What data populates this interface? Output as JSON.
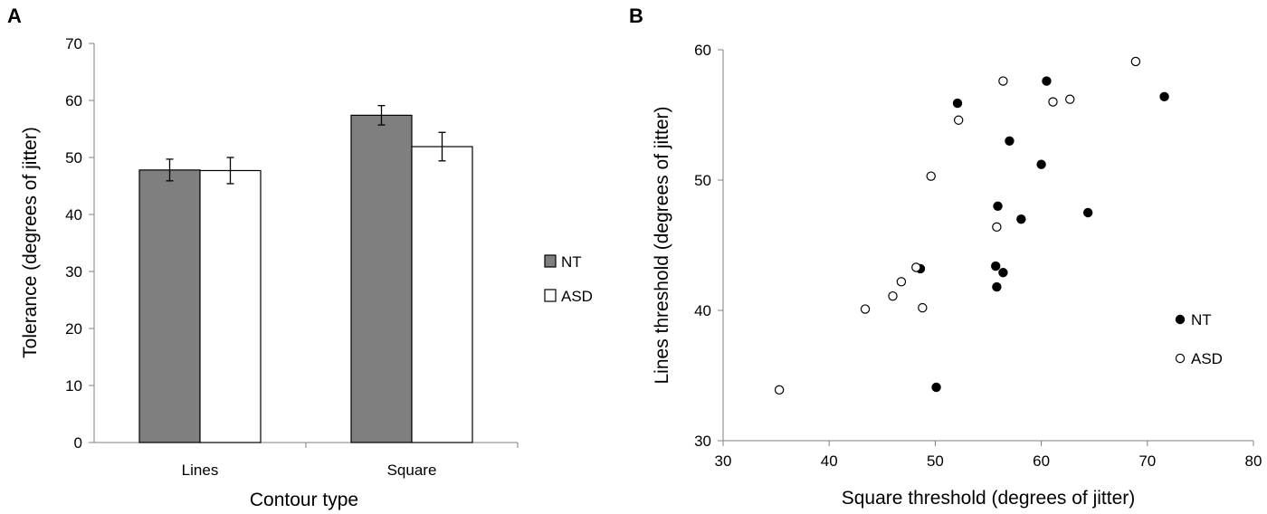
{
  "chart_data": [
    {
      "panel": "A",
      "type": "bar",
      "title": "",
      "xlabel": "Contour type",
      "ylabel": "Tolerance (degrees of jitter)",
      "ylim": [
        0,
        70
      ],
      "yticks": [
        0,
        10,
        20,
        30,
        40,
        50,
        60,
        70
      ],
      "grid": false,
      "legend_position": "right",
      "categories": [
        "Lines",
        "Square"
      ],
      "series": [
        {
          "name": "NT",
          "color": "#7f7f7f",
          "values": [
            47.8,
            57.4
          ],
          "errors": [
            1.9,
            1.7
          ]
        },
        {
          "name": "ASD",
          "color": "#ffffff",
          "values": [
            47.7,
            51.9
          ],
          "errors": [
            2.3,
            2.5
          ]
        }
      ]
    },
    {
      "panel": "B",
      "type": "scatter",
      "title": "",
      "xlabel": "Square threshold (degrees of jitter)",
      "ylabel": "Lines threshold (degrees of jitter)",
      "xlim": [
        30,
        80
      ],
      "ylim": [
        30,
        60
      ],
      "xticks": [
        30,
        40,
        50,
        60,
        70,
        80
      ],
      "yticks": [
        30,
        40,
        50,
        60
      ],
      "grid": false,
      "legend_position": "bottom-right",
      "series": [
        {
          "name": "NT",
          "marker": "filled",
          "points": [
            [
              60.5,
              57.6
            ],
            [
              71.6,
              56.4
            ],
            [
              52.1,
              55.9
            ],
            [
              57.0,
              53.0
            ],
            [
              60.0,
              51.2
            ],
            [
              55.9,
              48.0
            ],
            [
              58.1,
              47.0
            ],
            [
              64.4,
              47.5
            ],
            [
              48.6,
              43.2
            ],
            [
              55.7,
              43.4
            ],
            [
              56.4,
              42.9
            ],
            [
              55.8,
              41.8
            ],
            [
              50.1,
              34.1
            ]
          ]
        },
        {
          "name": "ASD",
          "marker": "open",
          "points": [
            [
              68.9,
              59.1
            ],
            [
              56.4,
              57.6
            ],
            [
              61.1,
              56.0
            ],
            [
              62.7,
              56.2
            ],
            [
              52.2,
              54.6
            ],
            [
              49.6,
              50.3
            ],
            [
              55.8,
              46.4
            ],
            [
              48.2,
              43.3
            ],
            [
              46.8,
              42.2
            ],
            [
              46.0,
              41.1
            ],
            [
              43.4,
              40.1
            ],
            [
              48.8,
              40.2
            ],
            [
              35.3,
              33.9
            ]
          ]
        }
      ]
    }
  ]
}
